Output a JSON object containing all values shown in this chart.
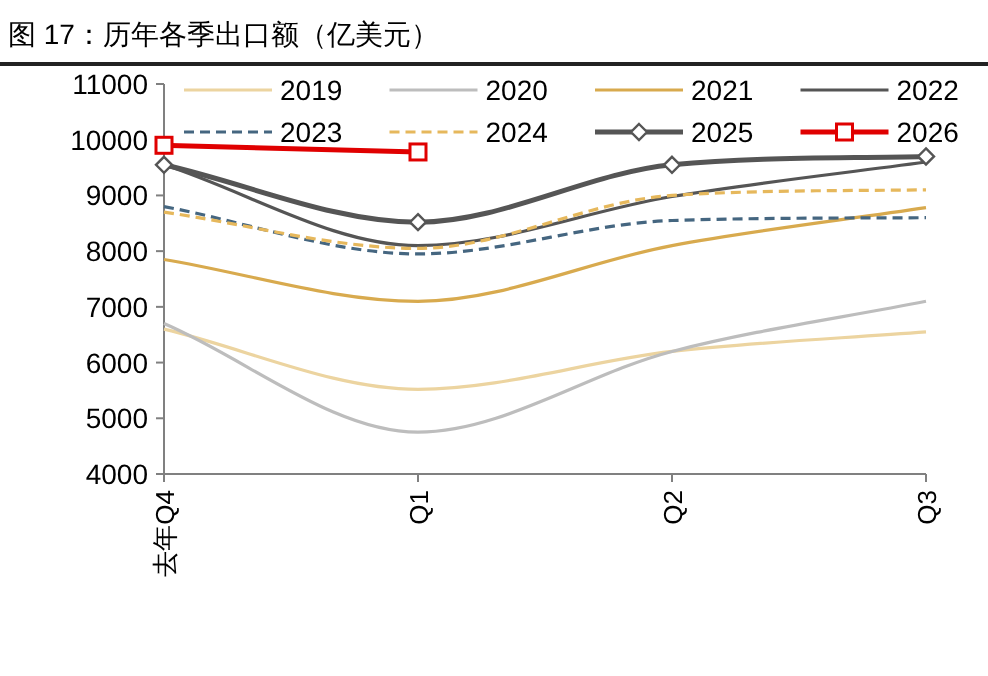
{
  "chart_data": {
    "type": "line",
    "title": "图 17：历年各季出口额（亿美元）",
    "categories": [
      "去年Q4",
      "Q1",
      "Q2",
      "Q3"
    ],
    "ylim": [
      4000,
      11000
    ],
    "yticks": [
      4000,
      5000,
      6000,
      7000,
      8000,
      9000,
      10000,
      11000
    ],
    "grid": false,
    "legend": "top",
    "series": [
      {
        "name": "2019",
        "color": "#ecd4a0",
        "values": [
          6600,
          5520,
          6200,
          6550
        ]
      },
      {
        "name": "2020",
        "color": "#bdbdbd",
        "values": [
          6700,
          4750,
          6200,
          7100
        ]
      },
      {
        "name": "2021",
        "color": "#d8aa4e",
        "values": [
          7850,
          7100,
          8100,
          8780
        ]
      },
      {
        "name": "2022",
        "color": "#555555",
        "values": [
          9550,
          8100,
          8980,
          9600
        ]
      },
      {
        "name": "2023",
        "color": "#456680",
        "line_style": "dashed",
        "values": [
          8800,
          7950,
          8550,
          8600
        ]
      },
      {
        "name": "2024",
        "color": "#e6b85c",
        "line_style": "dashed",
        "values": [
          8700,
          8050,
          9000,
          9100
        ]
      },
      {
        "name": "2025",
        "color": "#555555",
        "marker": "diamond",
        "values": [
          9550,
          8520,
          9550,
          9700
        ]
      },
      {
        "name": "2026",
        "color": "#e00000",
        "marker": "square",
        "values": [
          9900,
          9780,
          null,
          null
        ]
      }
    ]
  }
}
